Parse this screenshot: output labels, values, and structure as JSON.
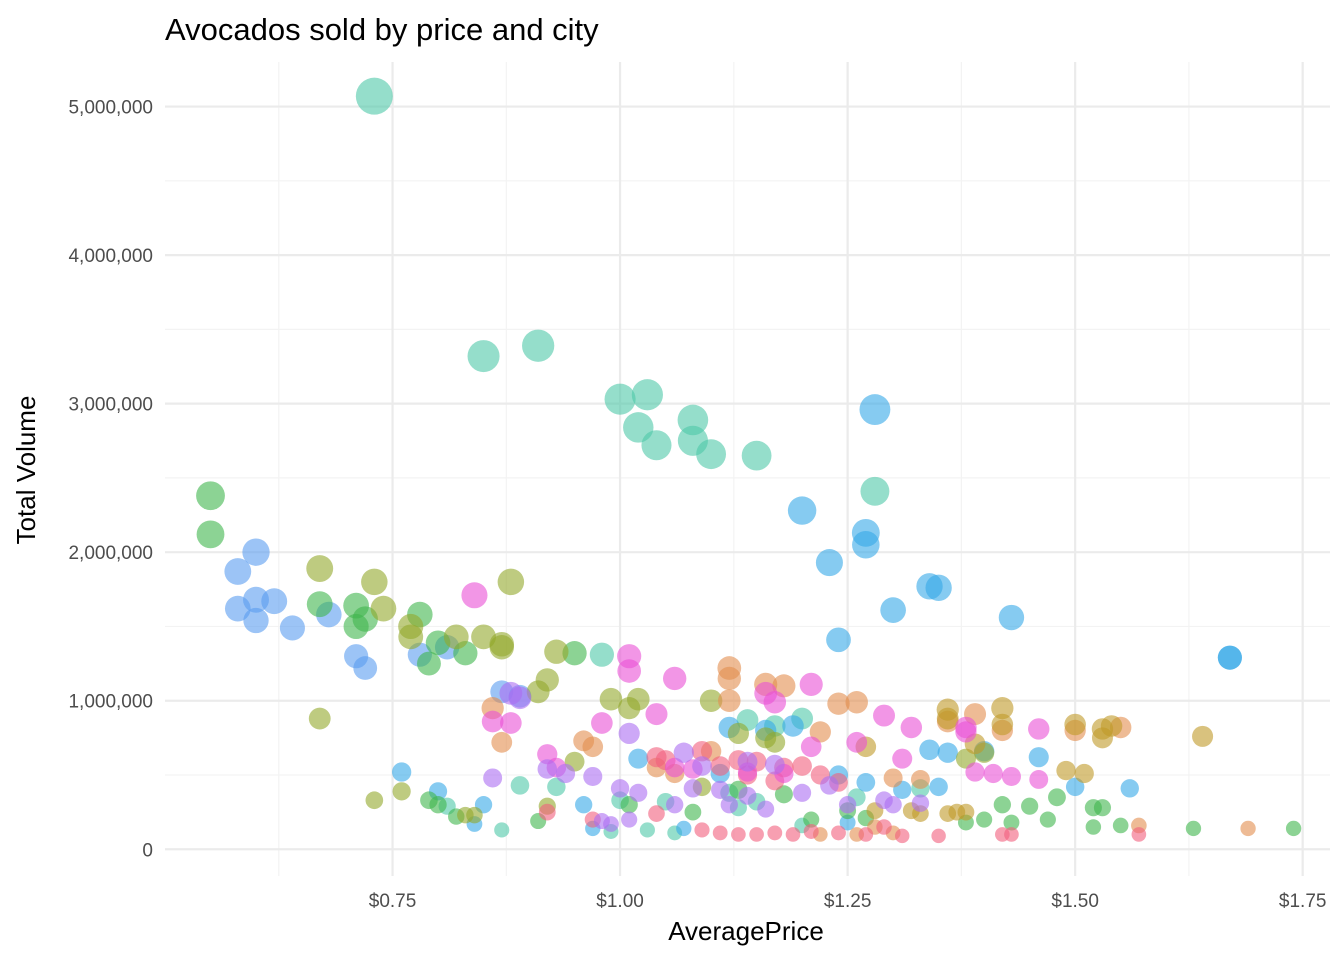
{
  "chart_data": {
    "type": "scatter",
    "title": "Avocados sold by price and city",
    "xlabel": "AveragePrice",
    "ylabel": "Total Volume",
    "xlim": [
      0.5,
      1.78
    ],
    "ylim": [
      -180000,
      5300000
    ],
    "x_ticks": [
      {
        "value": 0.75,
        "label": "$0.75"
      },
      {
        "value": 1.0,
        "label": "$1.00"
      },
      {
        "value": 1.25,
        "label": "$1.25"
      },
      {
        "value": 1.5,
        "label": "$1.50"
      },
      {
        "value": 1.75,
        "label": "$1.75"
      }
    ],
    "y_ticks": [
      {
        "value": 0,
        "label": "0"
      },
      {
        "value": 1000000,
        "label": "1,000,000"
      },
      {
        "value": 2000000,
        "label": "2,000,000"
      },
      {
        "value": 3000000,
        "label": "3,000,000"
      },
      {
        "value": 4000000,
        "label": "4,000,000"
      },
      {
        "value": 5000000,
        "label": "5,000,000"
      }
    ],
    "grid": true,
    "legend": "none",
    "point_size_encodes": "Total Volume",
    "series": [
      {
        "color": "#4ec8a8",
        "points": [
          [
            0.73,
            5070000
          ],
          [
            0.85,
            3320000
          ],
          [
            0.91,
            3390000
          ],
          [
            1.0,
            3030000
          ],
          [
            1.03,
            3060000
          ],
          [
            1.02,
            2840000
          ],
          [
            1.04,
            2720000
          ],
          [
            1.08,
            2890000
          ],
          [
            1.08,
            2750000
          ],
          [
            1.1,
            2660000
          ],
          [
            1.15,
            2650000
          ],
          [
            1.28,
            2410000
          ],
          [
            0.98,
            1310000
          ],
          [
            1.2,
            880000
          ],
          [
            1.14,
            870000
          ],
          [
            1.17,
            830000
          ],
          [
            0.89,
            430000
          ],
          [
            0.93,
            420000
          ],
          [
            1.0,
            330000
          ],
          [
            1.05,
            320000
          ],
          [
            1.12,
            380000
          ],
          [
            1.15,
            320000
          ],
          [
            1.26,
            350000
          ],
          [
            0.81,
            290000
          ],
          [
            0.87,
            130000
          ],
          [
            0.99,
            120000
          ],
          [
            1.06,
            110000
          ],
          [
            1.03,
            130000
          ],
          [
            1.2,
            160000
          ],
          [
            1.13,
            280000
          ],
          [
            1.33,
            410000
          ]
        ]
      },
      {
        "color": "#36a9e8",
        "points": [
          [
            1.28,
            2960000
          ],
          [
            1.2,
            2280000
          ],
          [
            1.27,
            2130000
          ],
          [
            1.27,
            2050000
          ],
          [
            1.23,
            1930000
          ],
          [
            1.34,
            1770000
          ],
          [
            1.35,
            1760000
          ],
          [
            1.3,
            1610000
          ],
          [
            1.43,
            1560000
          ],
          [
            1.24,
            1410000
          ],
          [
            1.67,
            1290000
          ],
          [
            1.67,
            1290000
          ],
          [
            1.12,
            820000
          ],
          [
            1.16,
            800000
          ],
          [
            1.19,
            830000
          ],
          [
            1.34,
            670000
          ],
          [
            1.36,
            650000
          ],
          [
            1.4,
            660000
          ],
          [
            1.46,
            620000
          ],
          [
            0.76,
            520000
          ],
          [
            0.8,
            390000
          ],
          [
            0.85,
            300000
          ],
          [
            0.96,
            300000
          ],
          [
            1.02,
            610000
          ],
          [
            1.11,
            510000
          ],
          [
            1.24,
            500000
          ],
          [
            1.27,
            450000
          ],
          [
            1.31,
            400000
          ],
          [
            1.35,
            420000
          ],
          [
            1.5,
            420000
          ],
          [
            1.56,
            410000
          ],
          [
            0.84,
            170000
          ],
          [
            0.97,
            140000
          ],
          [
            1.07,
            140000
          ],
          [
            1.25,
            180000
          ]
        ]
      },
      {
        "color": "#5a9cf0",
        "points": [
          [
            0.6,
            2000000
          ],
          [
            0.58,
            1870000
          ],
          [
            0.6,
            1680000
          ],
          [
            0.58,
            1620000
          ],
          [
            0.62,
            1670000
          ],
          [
            0.6,
            1540000
          ],
          [
            0.64,
            1490000
          ],
          [
            0.68,
            1580000
          ],
          [
            0.71,
            1300000
          ],
          [
            0.72,
            1220000
          ],
          [
            0.78,
            1310000
          ],
          [
            0.81,
            1360000
          ],
          [
            0.89,
            1030000
          ],
          [
            0.87,
            1060000
          ]
        ]
      },
      {
        "color": "#3fb64c",
        "points": [
          [
            0.55,
            2380000
          ],
          [
            0.55,
            2120000
          ],
          [
            0.67,
            1650000
          ],
          [
            0.71,
            1640000
          ],
          [
            0.71,
            1500000
          ],
          [
            0.72,
            1550000
          ],
          [
            0.78,
            1580000
          ],
          [
            0.8,
            1390000
          ],
          [
            0.83,
            1320000
          ],
          [
            0.79,
            1250000
          ],
          [
            0.95,
            1320000
          ],
          [
            0.79,
            330000
          ],
          [
            0.8,
            300000
          ],
          [
            0.82,
            220000
          ],
          [
            0.91,
            190000
          ],
          [
            1.01,
            300000
          ],
          [
            1.08,
            250000
          ],
          [
            1.13,
            400000
          ],
          [
            1.18,
            370000
          ],
          [
            1.21,
            200000
          ],
          [
            1.25,
            260000
          ],
          [
            1.27,
            210000
          ],
          [
            1.38,
            180000
          ],
          [
            1.4,
            200000
          ],
          [
            1.42,
            300000
          ],
          [
            1.45,
            290000
          ],
          [
            1.47,
            200000
          ],
          [
            1.48,
            350000
          ],
          [
            1.52,
            280000
          ],
          [
            1.53,
            280000
          ],
          [
            1.52,
            150000
          ],
          [
            1.55,
            160000
          ],
          [
            1.63,
            140000
          ],
          [
            1.74,
            140000
          ],
          [
            1.43,
            180000
          ]
        ]
      },
      {
        "color": "#93a82c",
        "points": [
          [
            0.67,
            1890000
          ],
          [
            0.73,
            1800000
          ],
          [
            0.74,
            1620000
          ],
          [
            0.77,
            1500000
          ],
          [
            0.77,
            1430000
          ],
          [
            0.82,
            1430000
          ],
          [
            0.85,
            1430000
          ],
          [
            0.87,
            1380000
          ],
          [
            0.87,
            1360000
          ],
          [
            0.88,
            1800000
          ],
          [
            0.93,
            1330000
          ],
          [
            0.92,
            1140000
          ],
          [
            0.91,
            1060000
          ],
          [
            0.99,
            1010000
          ],
          [
            1.01,
            950000
          ],
          [
            1.02,
            1010000
          ],
          [
            1.1,
            1000000
          ],
          [
            0.67,
            880000
          ],
          [
            0.73,
            330000
          ],
          [
            0.76,
            390000
          ],
          [
            0.83,
            230000
          ],
          [
            0.84,
            230000
          ],
          [
            0.92,
            290000
          ],
          [
            0.95,
            590000
          ],
          [
            1.13,
            780000
          ],
          [
            1.16,
            750000
          ],
          [
            1.17,
            720000
          ],
          [
            1.38,
            610000
          ],
          [
            1.4,
            650000
          ],
          [
            1.09,
            420000
          ]
        ]
      },
      {
        "color": "#e38e4f",
        "points": [
          [
            0.86,
            950000
          ],
          [
            0.87,
            720000
          ],
          [
            0.96,
            730000
          ],
          [
            0.97,
            690000
          ],
          [
            1.04,
            550000
          ],
          [
            1.06,
            510000
          ],
          [
            1.1,
            660000
          ],
          [
            1.12,
            1220000
          ],
          [
            1.12,
            1150000
          ],
          [
            1.12,
            1000000
          ],
          [
            1.16,
            1110000
          ],
          [
            1.18,
            1100000
          ],
          [
            1.24,
            980000
          ],
          [
            1.26,
            990000
          ],
          [
            1.22,
            790000
          ],
          [
            1.3,
            480000
          ],
          [
            1.33,
            470000
          ],
          [
            1.36,
            860000
          ],
          [
            1.39,
            910000
          ],
          [
            1.42,
            800000
          ],
          [
            1.5,
            800000
          ],
          [
            1.55,
            820000
          ],
          [
            1.57,
            160000
          ],
          [
            1.69,
            140000
          ],
          [
            1.28,
            150000
          ],
          [
            1.3,
            110000
          ],
          [
            1.22,
            100000
          ],
          [
            1.26,
            100000
          ]
        ]
      },
      {
        "color": "#c09a28",
        "points": [
          [
            1.36,
            940000
          ],
          [
            1.36,
            880000
          ],
          [
            1.42,
            950000
          ],
          [
            1.42,
            840000
          ],
          [
            1.5,
            840000
          ],
          [
            1.53,
            810000
          ],
          [
            1.54,
            830000
          ],
          [
            1.53,
            750000
          ],
          [
            1.64,
            760000
          ],
          [
            1.49,
            530000
          ],
          [
            1.51,
            510000
          ],
          [
            1.27,
            690000
          ],
          [
            1.33,
            240000
          ],
          [
            1.36,
            240000
          ],
          [
            1.37,
            250000
          ],
          [
            1.38,
            250000
          ],
          [
            1.28,
            260000
          ],
          [
            1.32,
            260000
          ],
          [
            1.39,
            710000
          ]
        ]
      },
      {
        "color": "#f15f7d",
        "points": [
          [
            1.04,
            620000
          ],
          [
            1.05,
            600000
          ],
          [
            1.09,
            660000
          ],
          [
            1.11,
            560000
          ],
          [
            1.13,
            600000
          ],
          [
            1.15,
            590000
          ],
          [
            1.18,
            550000
          ],
          [
            1.2,
            560000
          ],
          [
            1.22,
            500000
          ],
          [
            1.24,
            450000
          ],
          [
            1.14,
            500000
          ],
          [
            1.17,
            460000
          ],
          [
            1.04,
            240000
          ],
          [
            1.09,
            130000
          ],
          [
            1.11,
            110000
          ],
          [
            1.13,
            100000
          ],
          [
            1.15,
            100000
          ],
          [
            1.17,
            110000
          ],
          [
            1.19,
            100000
          ],
          [
            1.21,
            120000
          ],
          [
            1.24,
            110000
          ],
          [
            1.27,
            100000
          ],
          [
            1.29,
            150000
          ],
          [
            1.31,
            90000
          ],
          [
            1.35,
            90000
          ],
          [
            1.42,
            100000
          ],
          [
            1.43,
            100000
          ],
          [
            1.57,
            100000
          ],
          [
            0.92,
            250000
          ],
          [
            0.97,
            200000
          ]
        ]
      },
      {
        "color": "#e950d6",
        "points": [
          [
            0.84,
            1710000
          ],
          [
            1.01,
            1300000
          ],
          [
            1.01,
            1200000
          ],
          [
            1.06,
            1150000
          ],
          [
            1.21,
            1110000
          ],
          [
            1.16,
            1050000
          ],
          [
            1.17,
            990000
          ],
          [
            1.04,
            910000
          ],
          [
            0.98,
            850000
          ],
          [
            0.86,
            860000
          ],
          [
            0.88,
            850000
          ],
          [
            1.29,
            900000
          ],
          [
            1.32,
            820000
          ],
          [
            1.38,
            820000
          ],
          [
            1.38,
            790000
          ],
          [
            1.46,
            810000
          ],
          [
            1.26,
            720000
          ],
          [
            1.21,
            690000
          ],
          [
            0.92,
            640000
          ],
          [
            0.93,
            550000
          ],
          [
            1.06,
            550000
          ],
          [
            1.08,
            540000
          ],
          [
            1.14,
            520000
          ],
          [
            1.18,
            510000
          ],
          [
            1.31,
            610000
          ],
          [
            1.39,
            520000
          ],
          [
            1.43,
            490000
          ],
          [
            1.46,
            470000
          ],
          [
            1.41,
            510000
          ]
        ]
      },
      {
        "color": "#ac6ef2",
        "points": [
          [
            0.88,
            1050000
          ],
          [
            0.89,
            1020000
          ],
          [
            1.01,
            780000
          ],
          [
            1.07,
            650000
          ],
          [
            1.09,
            560000
          ],
          [
            1.14,
            590000
          ],
          [
            1.17,
            570000
          ],
          [
            0.86,
            480000
          ],
          [
            0.92,
            540000
          ],
          [
            0.94,
            510000
          ],
          [
            0.97,
            490000
          ],
          [
            1.0,
            410000
          ],
          [
            1.02,
            380000
          ],
          [
            1.08,
            410000
          ],
          [
            1.11,
            400000
          ],
          [
            1.14,
            360000
          ],
          [
            1.2,
            380000
          ],
          [
            1.23,
            430000
          ],
          [
            1.25,
            300000
          ],
          [
            1.29,
            330000
          ],
          [
            1.33,
            310000
          ],
          [
            1.3,
            300000
          ],
          [
            1.06,
            300000
          ],
          [
            1.12,
            300000
          ],
          [
            1.16,
            270000
          ],
          [
            1.01,
            200000
          ],
          [
            0.99,
            170000
          ],
          [
            0.98,
            190000
          ]
        ]
      }
    ]
  }
}
